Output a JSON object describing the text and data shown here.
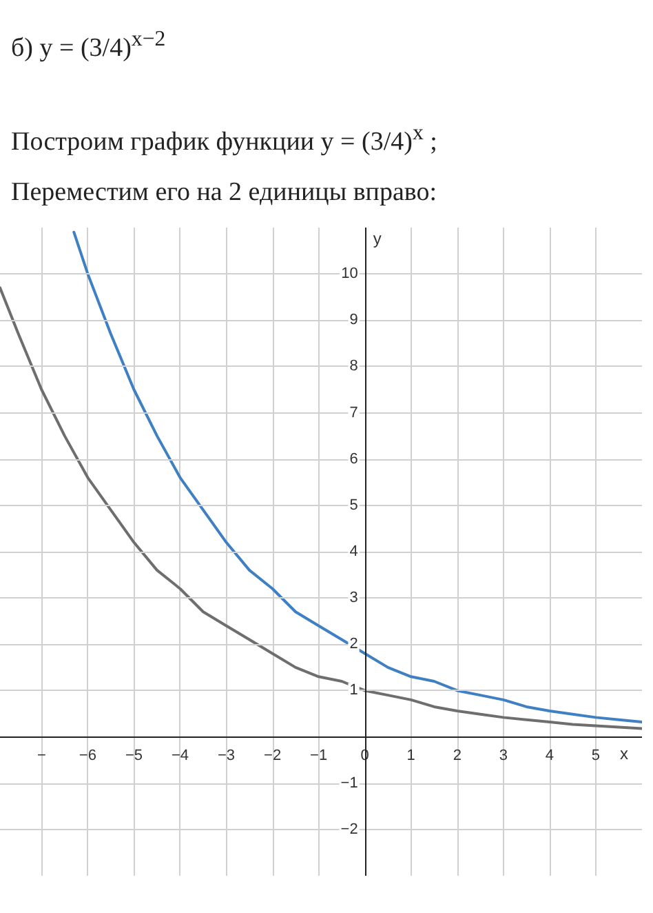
{
  "chart_data": {
    "type": "line",
    "title": "б) y = (3/4)$^{x−2}$",
    "subtitle": "Построим график функции y = (3/4)$^{x}$ ;",
    "annotations": [
      "Переместим его на 2 единицы вправо:"
    ],
    "xlabel": "x",
    "ylabel": "y",
    "series": [
      {
        "color": "#6e6e6e",
        "x": [
          -7.9,
          -7.5,
          -7,
          -6.5,
          -6,
          -5.5,
          -5,
          -4.5,
          -4,
          -3.5,
          -3,
          -2.5,
          -2,
          -1.5,
          -1,
          -0.5,
          0,
          0.5,
          1,
          1.5,
          2,
          2.5,
          3,
          3.5,
          4,
          4.5,
          5,
          5.5,
          6
        ],
        "values": [
          9.7,
          8.7,
          7.5,
          6.5,
          5.6,
          4.9,
          4.2,
          3.6,
          3.2,
          2.7,
          2.4,
          2.1,
          1.8,
          1.5,
          1.3,
          1.2,
          1,
          0.9,
          0.8,
          0.65,
          0.56,
          0.49,
          0.42,
          0.37,
          0.32,
          0.27,
          0.24,
          0.21,
          0.18
        ]
      },
      {
        "color": "#3f7fc4",
        "x": [
          -6.3,
          -6,
          -5.5,
          -5,
          -4.5,
          -4,
          -3.5,
          -3,
          -2.5,
          -2,
          -1.5,
          -1,
          -0.5,
          0,
          0.5,
          1,
          1.5,
          2,
          2.5,
          3,
          3.5,
          4,
          4.5,
          5,
          5.5,
          6
        ],
        "values": [
          10.9,
          10,
          8.7,
          7.5,
          6.5,
          5.6,
          4.9,
          4.2,
          3.6,
          3.2,
          2.7,
          2.4,
          2.1,
          1.8,
          1.5,
          1.3,
          1.2,
          1,
          0.9,
          0.8,
          0.65,
          0.56,
          0.49,
          0.42,
          0.37,
          0.32
        ]
      }
    ],
    "xlim": [
      -7.9,
      6
    ],
    "ylim": [
      -3,
      11
    ],
    "xticks": [
      {
        "value": -7,
        "label": "−"
      },
      -6,
      -5,
      -4,
      -3,
      -2,
      -1,
      0,
      1,
      2,
      3,
      4,
      5
    ],
    "yticks": [
      -2,
      -1,
      1,
      2,
      3,
      4,
      5,
      6,
      7,
      8,
      9,
      10
    ],
    "grid": true,
    "marker": "none",
    "line_style": "solid"
  }
}
